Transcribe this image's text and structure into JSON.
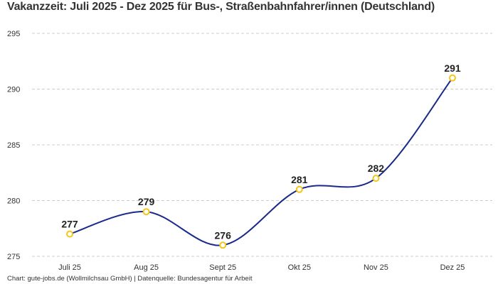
{
  "chart_data": {
    "type": "line",
    "title": "Vakanzzeit: Juli 2025 - Dez 2025 für Bus-, Straßenbahnfahrer/innen (Deutschland)",
    "categories": [
      "Juli 25",
      "Aug 25",
      "Sept 25",
      "Okt 25",
      "Nov 25",
      "Dez 25"
    ],
    "values": [
      277,
      279,
      276,
      281,
      282,
      291
    ],
    "xlabel": "",
    "ylabel": "",
    "ylim": [
      275,
      295
    ],
    "yticks": [
      275,
      280,
      285,
      290,
      295
    ],
    "grid": true,
    "smooth": true,
    "line_color": "#1a2a8c",
    "marker_color": "#f5c518",
    "footer": "Chart: gute-jobs.de (Wollmilchsau GmbH) | Datenquelle: Bundesagentur für Arbeit"
  }
}
